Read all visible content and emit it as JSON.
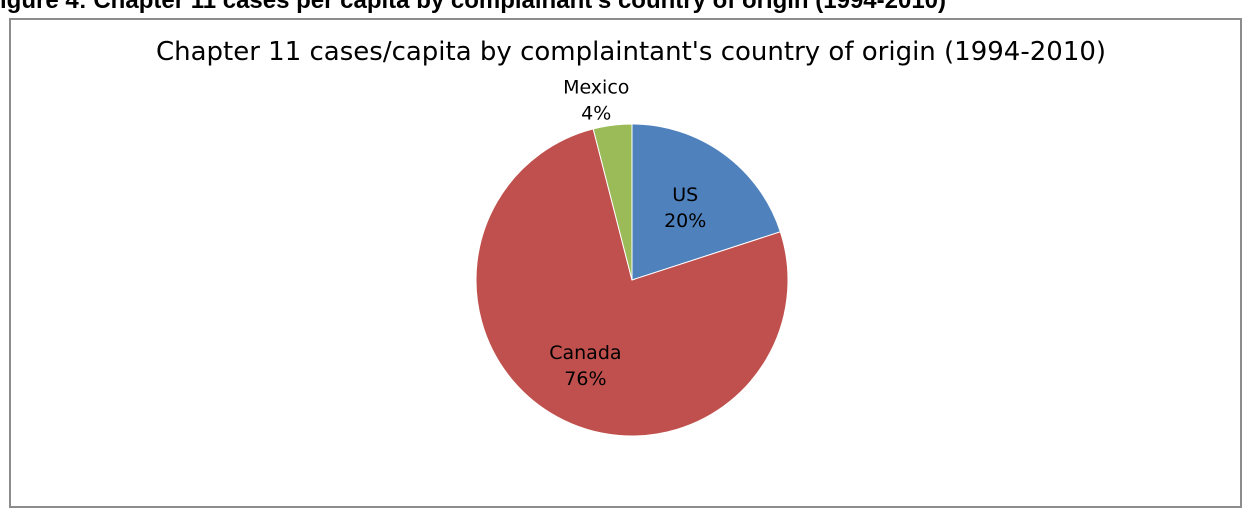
{
  "document": {
    "caption_fragment": "igure 4: Chapter 11 cases per capita by complainant's country of origin (1994-2010)"
  },
  "chart_data": {
    "type": "pie",
    "title": "Chapter 11 cases/capita by complaintant's country of origin (1994-2010)",
    "start_angle_deg": 0,
    "direction": "clockwise",
    "slices": [
      {
        "name": "US",
        "value": 20,
        "label_pct": "20%",
        "color": "#4f81bd"
      },
      {
        "name": "Canada",
        "value": 76,
        "label_pct": "76%",
        "color": "#c0504d"
      },
      {
        "name": "Mexico",
        "value": 4,
        "label_pct": "4%",
        "color": "#9bbb59"
      }
    ],
    "data_labels": "category name and percentage"
  }
}
